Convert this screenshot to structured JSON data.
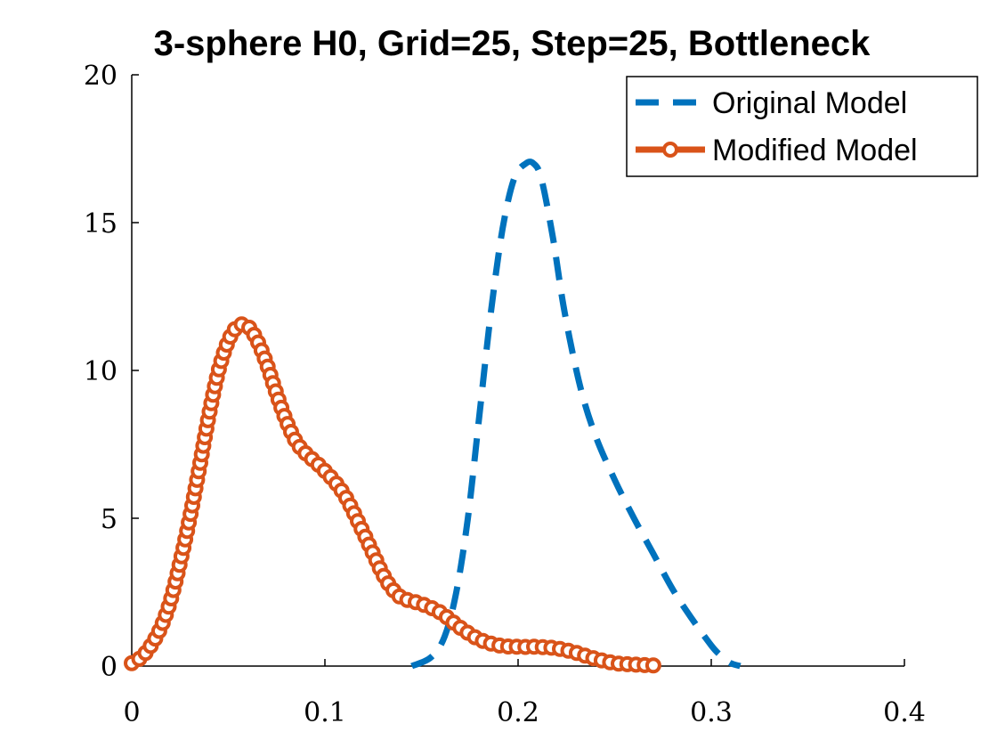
{
  "chart_data": {
    "type": "line",
    "title": "3-sphere H0, Grid=25, Step=25, Bottleneck",
    "xlabel": "",
    "ylabel": "",
    "xlim": [
      0,
      0.4
    ],
    "ylim": [
      0,
      20
    ],
    "xticks": [
      0,
      0.1,
      0.2,
      0.3,
      0.4
    ],
    "yticks": [
      0,
      5,
      10,
      15,
      20
    ],
    "xtick_labels": [
      "0",
      "0.1",
      "0.2",
      "0.3",
      "0.4"
    ],
    "ytick_labels": [
      "0",
      "5",
      "10",
      "15",
      "20"
    ],
    "grid": false,
    "legend_position": "top-right",
    "series": [
      {
        "name": "Original Model",
        "color": "#0072BD",
        "style": "dashed",
        "x": [
          0.145,
          0.155,
          0.162,
          0.168,
          0.174,
          0.18,
          0.186,
          0.192,
          0.198,
          0.204,
          0.208,
          0.212,
          0.218,
          0.224,
          0.232,
          0.24,
          0.25,
          0.26,
          0.27,
          0.28,
          0.29,
          0.3,
          0.305,
          0.31,
          0.315
        ],
        "y": [
          0,
          0.3,
          1.0,
          2.5,
          5.0,
          8.5,
          12.0,
          14.8,
          16.5,
          17.0,
          17.0,
          16.5,
          14.5,
          12.0,
          9.5,
          7.8,
          6.3,
          5.0,
          3.8,
          2.6,
          1.6,
          0.7,
          0.35,
          0.1,
          0
        ]
      },
      {
        "name": "Modified Model",
        "color": "#D95319",
        "style": "solid-circle-markers",
        "x": [
          0,
          0.005,
          0.01,
          0.015,
          0.02,
          0.025,
          0.03,
          0.035,
          0.04,
          0.045,
          0.05,
          0.055,
          0.06,
          0.065,
          0.07,
          0.075,
          0.08,
          0.085,
          0.09,
          0.1,
          0.11,
          0.12,
          0.125,
          0.13,
          0.135,
          0.14,
          0.15,
          0.16,
          0.17,
          0.18,
          0.19,
          0.2,
          0.21,
          0.22,
          0.23,
          0.24,
          0.25,
          0.26,
          0.27
        ],
        "y": [
          0.1,
          0.3,
          0.7,
          1.3,
          2.2,
          3.5,
          5.0,
          6.7,
          8.5,
          10.0,
          11.0,
          11.5,
          11.5,
          11.0,
          10.2,
          9.2,
          8.3,
          7.6,
          7.2,
          6.6,
          5.8,
          4.5,
          3.8,
          3.1,
          2.6,
          2.3,
          2.1,
          1.8,
          1.3,
          0.9,
          0.7,
          0.65,
          0.65,
          0.6,
          0.45,
          0.25,
          0.1,
          0.05,
          0.02
        ]
      }
    ]
  }
}
